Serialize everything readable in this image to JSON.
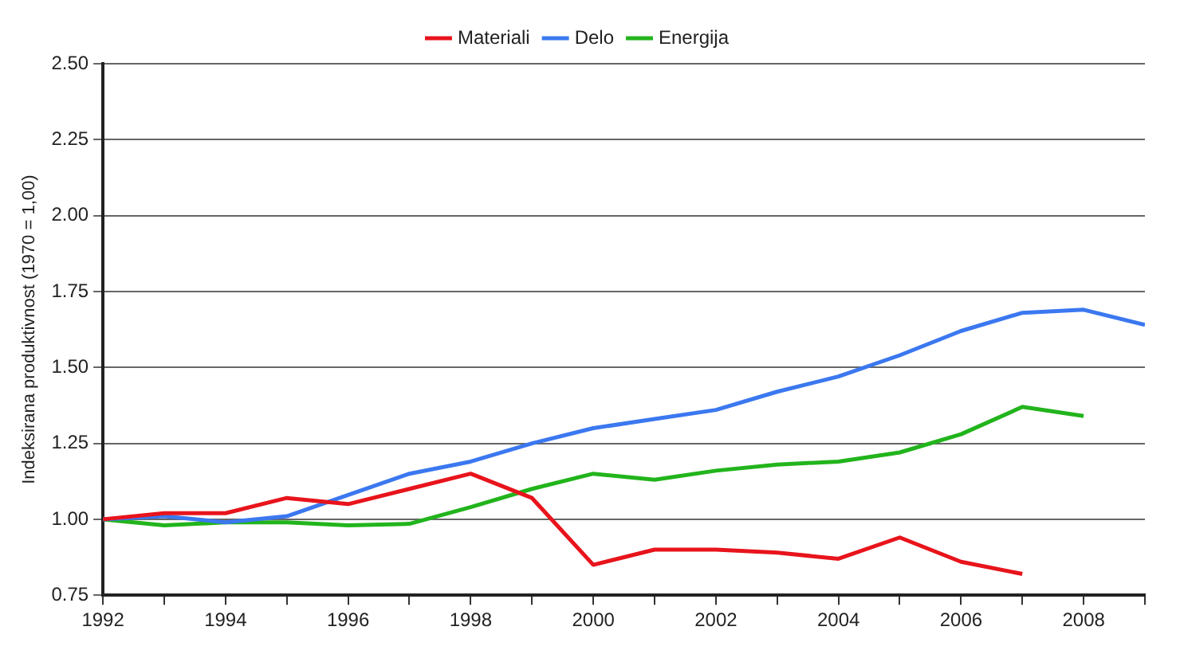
{
  "chart_data": {
    "type": "line",
    "ylabel": "Indeksirana produktivnost (1970 = 1,00)",
    "x": [
      1992,
      1993,
      1994,
      1995,
      1996,
      1997,
      1998,
      1999,
      2000,
      2001,
      2002,
      2003,
      2004,
      2005,
      2006,
      2007,
      2008,
      2009
    ],
    "series": [
      {
        "name": "Materiali",
        "color": "#e8141c",
        "values": [
          1.0,
          1.02,
          1.02,
          1.07,
          1.05,
          1.1,
          1.15,
          1.07,
          0.85,
          0.9,
          0.9,
          0.89,
          0.87,
          0.94,
          0.86,
          0.82,
          null,
          null
        ]
      },
      {
        "name": "Delo",
        "color": "#3b78f0",
        "values": [
          1.0,
          1.01,
          0.99,
          1.01,
          1.08,
          1.15,
          1.19,
          1.25,
          1.3,
          1.33,
          1.36,
          1.42,
          1.47,
          1.54,
          1.62,
          1.68,
          1.69,
          1.64
        ]
      },
      {
        "name": "Energija",
        "color": "#22b41c",
        "values": [
          1.0,
          0.98,
          0.99,
          0.99,
          0.98,
          0.985,
          1.04,
          1.1,
          1.15,
          1.13,
          1.16,
          1.18,
          1.19,
          1.22,
          1.28,
          1.37,
          1.34,
          null
        ]
      }
    ],
    "xlim": [
      1992,
      2009
    ],
    "xticks": [
      1992,
      {
        "value": 1993,
        "label": null
      },
      1994,
      {
        "value": 1995,
        "label": null
      },
      1996,
      {
        "value": 1997,
        "label": null
      },
      1998,
      {
        "value": 1999,
        "label": null
      },
      2000,
      {
        "value": 2001,
        "label": null
      },
      2002,
      {
        "value": 2003,
        "label": null
      },
      2004,
      {
        "value": 2005,
        "label": null
      },
      2006,
      {
        "value": 2007,
        "label": null
      },
      2008,
      {
        "value": 2009,
        "label": null
      }
    ],
    "ylim": [
      0.75,
      2.5
    ],
    "yticks": [
      0.75,
      {
        "value": 1,
        "label": "1.00"
      },
      1.25,
      {
        "value": 1.5,
        "label": "1.50"
      },
      1.75,
      {
        "value": 2,
        "label": "2.00"
      },
      2.25,
      {
        "value": 2.5,
        "label": "2.50"
      }
    ],
    "grid": "y",
    "legend": "top",
    "marker": "none",
    "line_style": "solid"
  }
}
